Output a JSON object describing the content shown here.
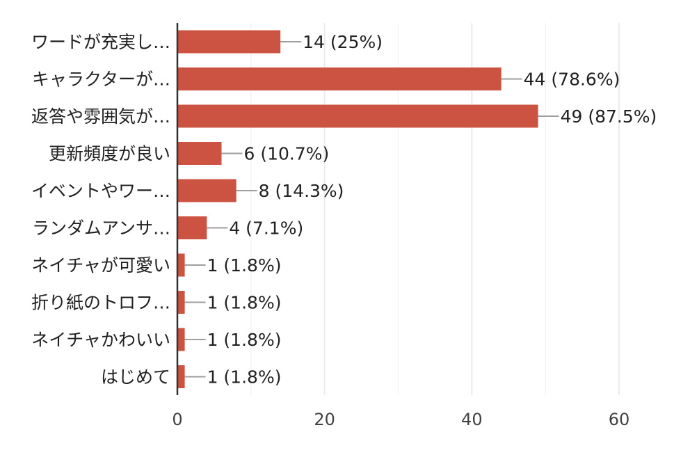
{
  "chart_data": {
    "type": "bar",
    "orientation": "horizontal",
    "categories": [
      "ワードが充実し…",
      "キャラクターが…",
      "返答や雰囲気が…",
      "更新頻度が良い",
      "イベントやワー…",
      "ランダムアンサ…",
      "ネイチャが可愛い",
      "折り紙のトロフ…",
      "ネイチャかわいい",
      "はじめて"
    ],
    "values": [
      14,
      44,
      49,
      6,
      8,
      4,
      1,
      1,
      1,
      1
    ],
    "data_labels": [
      "14 (25%)",
      "44 (78.6%)",
      "49 (87.5%)",
      "6 (10.7%)",
      "8 (14.3%)",
      "4 (7.1%)",
      "1 (1.8%)",
      "1 (1.8%)",
      "1 (1.8%)",
      "1 (1.8%)"
    ],
    "x_ticks": [
      "0",
      "20",
      "40",
      "60"
    ],
    "xlim": [
      0,
      60
    ],
    "grid": true,
    "bar_color": "#cc5241",
    "grid_color": "#ebebeb",
    "axis_color": "#333333",
    "leader_color": "#9e9e9e"
  }
}
